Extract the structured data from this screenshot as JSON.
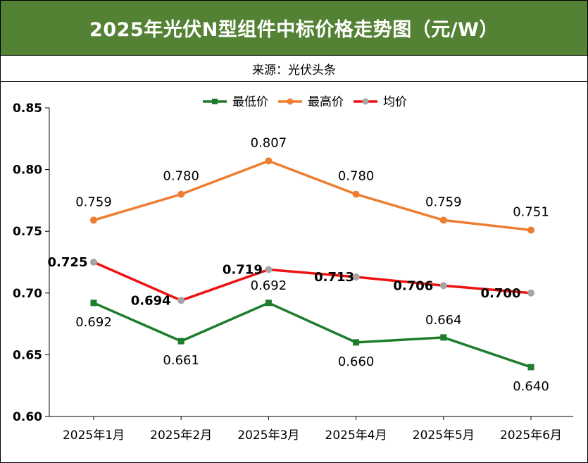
{
  "header": {
    "title": "2025年光伏N型组件中标价格走势图（元/W）",
    "source": "来源：光伏头条"
  },
  "colors": {
    "title_bg": "#548235",
    "min": "#1e7d2c",
    "max": "#ed7d31",
    "avg": "#ee1111",
    "avg_marker": "#a5a5a5"
  },
  "chart_data": {
    "type": "line",
    "title": "2025年光伏N型组件中标价格走势图（元/W）",
    "categories": [
      "2025年1月",
      "2025年2月",
      "2025年3月",
      "2025年4月",
      "2025年5月",
      "2025年6月"
    ],
    "series": [
      {
        "name": "最低价",
        "values": [
          0.692,
          0.661,
          0.692,
          0.66,
          0.664,
          0.64
        ]
      },
      {
        "name": "最高价",
        "values": [
          0.759,
          0.78,
          0.807,
          0.78,
          0.759,
          0.751
        ]
      },
      {
        "name": "均价",
        "values": [
          0.725,
          0.694,
          0.719,
          0.713,
          0.706,
          0.7
        ]
      }
    ],
    "ylim": [
      0.6,
      0.85
    ],
    "yticks": [
      "0.85",
      "0.80",
      "0.75",
      "0.70",
      "0.65",
      "0.60"
    ],
    "legend_position": "top-center",
    "grid": false
  }
}
